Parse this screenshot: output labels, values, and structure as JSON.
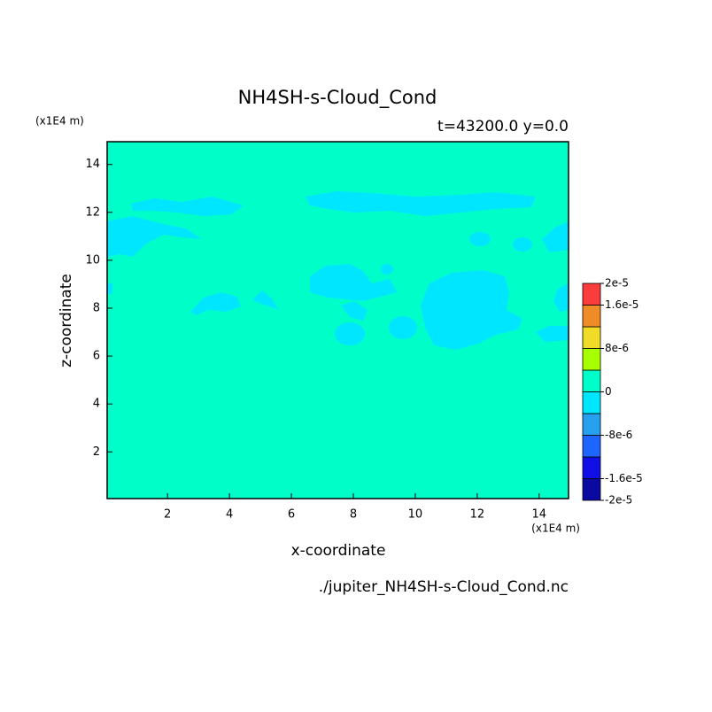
{
  "chart_data": {
    "type": "contour",
    "title": "NH4SH-s-Cloud_Cond",
    "subtitle": "t=43200.0 y=0.0",
    "x_label": "x-coordinate",
    "y_label": "z-coordinate",
    "x_unit": "(x1E4 m)",
    "y_unit": "(x1E4 m)",
    "file": "./jupiter_NH4SH-s-Cloud_Cond.nc",
    "xlim": [
      0.05,
      14.95
    ],
    "ylim": [
      0.05,
      14.95
    ],
    "xticks": [
      2,
      4,
      6,
      8,
      10,
      12,
      14
    ],
    "yticks": [
      2,
      4,
      6,
      8,
      10,
      12,
      14
    ],
    "colorbar": {
      "levels": [
        -2e-05,
        -1.6e-05,
        -1.2e-05,
        -8e-06,
        -4e-06,
        0,
        4e-06,
        8e-06,
        1.2e-05,
        1.6e-05,
        2e-05
      ],
      "colors": [
        "#0a0aa0",
        "#1010e6",
        "#1e64ff",
        "#28a0f0",
        "#00e6ff",
        "#00ffc8",
        "#a8ff00",
        "#f0dc28",
        "#f08c28",
        "#fa3c3c"
      ],
      "ticks": [
        {
          "value": -2e-05,
          "label": "-2e-5"
        },
        {
          "value": -1.6e-05,
          "label": "-1.6e-5"
        },
        {
          "value": -8e-06,
          "label": "-8e-6"
        },
        {
          "value": 0,
          "label": "0"
        },
        {
          "value": 8e-06,
          "label": "8e-6"
        },
        {
          "value": 1.6e-05,
          "label": "1.6e-5"
        },
        {
          "value": 2e-05,
          "label": "2e-5"
        }
      ]
    }
  }
}
